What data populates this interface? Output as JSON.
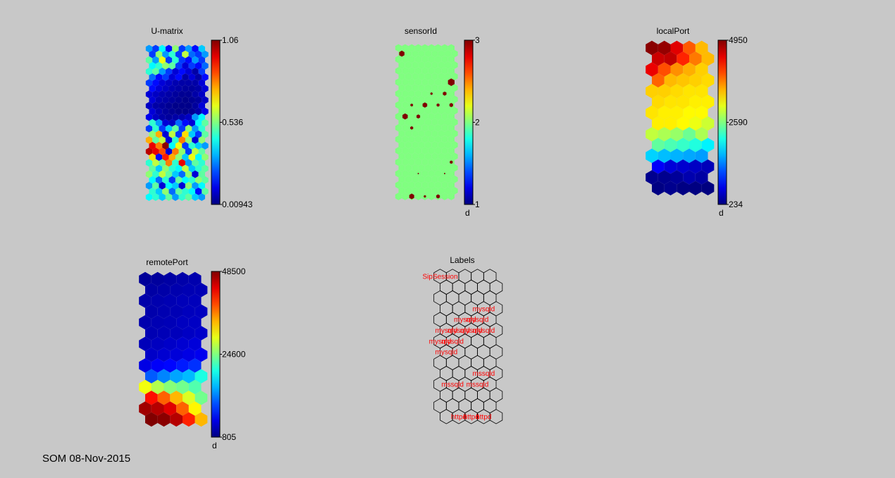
{
  "footer_text": "SOM 08-Nov-2015",
  "chart_data": [
    {
      "type": "heatmap",
      "title": "U-matrix",
      "map_layout": "hexagonal",
      "grid_columns": 9,
      "grid_rows": 27,
      "colormap": "jet",
      "colorbar": {
        "ticks": [
          "1.06",
          "0.536",
          "0.00943"
        ],
        "min": 0.00943,
        "max": 1.06,
        "unit_label": ""
      },
      "values": [
        [
          0.3,
          0.2,
          0.4,
          0.15,
          0.55,
          0.2,
          0.3,
          0.15,
          0.35
        ],
        [
          0.2,
          0.55,
          0.3,
          0.45,
          0.2,
          0.6,
          0.25,
          0.2,
          0.3
        ],
        [
          0.5,
          0.3,
          0.65,
          0.2,
          0.45,
          0.2,
          0.15,
          0.3,
          0.2
        ],
        [
          0.4,
          0.45,
          0.55,
          0.5,
          0.2,
          0.1,
          0.2,
          0.15,
          0.25
        ],
        [
          0.45,
          0.5,
          0.3,
          0.2,
          0.1,
          0.15,
          0.1,
          0.05,
          0.2
        ],
        [
          0.25,
          0.15,
          0.2,
          0.1,
          0.15,
          0.05,
          0.1,
          0.05,
          0.15
        ],
        [
          0.2,
          0.15,
          0.1,
          0.08,
          0.06,
          0.05,
          0.05,
          0.05,
          0.1
        ],
        [
          0.15,
          0.1,
          0.08,
          0.06,
          0.05,
          0.04,
          0.04,
          0.05,
          0.1
        ],
        [
          0.1,
          0.08,
          0.06,
          0.05,
          0.04,
          0.03,
          0.03,
          0.05,
          0.08
        ],
        [
          0.1,
          0.06,
          0.05,
          0.04,
          0.03,
          0.02,
          0.03,
          0.04,
          0.08
        ],
        [
          0.08,
          0.05,
          0.04,
          0.03,
          0.02,
          0.02,
          0.02,
          0.04,
          0.1
        ],
        [
          0.1,
          0.06,
          0.04,
          0.03,
          0.02,
          0.02,
          0.03,
          0.05,
          0.12
        ],
        [
          0.12,
          0.08,
          0.05,
          0.04,
          0.05,
          0.06,
          0.08,
          0.3,
          0.4
        ],
        [
          0.45,
          0.3,
          0.1,
          0.08,
          0.25,
          0.15,
          0.1,
          0.4,
          0.5
        ],
        [
          0.2,
          0.45,
          0.2,
          0.35,
          0.5,
          0.2,
          0.55,
          0.3,
          0.45
        ],
        [
          0.55,
          0.75,
          0.1,
          0.6,
          0.2,
          0.7,
          0.35,
          0.2,
          0.5
        ],
        [
          0.75,
          0.5,
          0.6,
          0.1,
          0.45,
          0.8,
          0.55,
          0.1,
          0.55
        ],
        [
          0.95,
          0.8,
          1.05,
          0.4,
          0.65,
          0.2,
          0.45,
          0.35,
          0.3
        ],
        [
          1.0,
          0.95,
          0.85,
          0.1,
          0.8,
          0.55,
          0.2,
          0.6,
          0.5
        ],
        [
          0.7,
          0.15,
          0.9,
          0.75,
          0.55,
          0.35,
          0.65,
          0.4,
          0.55
        ],
        [
          0.45,
          0.6,
          0.5,
          0.8,
          0.45,
          0.95,
          0.3,
          0.5,
          0.45
        ],
        [
          0.5,
          0.35,
          0.55,
          0.45,
          0.4,
          0.6,
          0.35,
          0.45,
          0.5
        ],
        [
          0.55,
          0.45,
          0.6,
          0.5,
          0.35,
          0.25,
          0.55,
          0.1,
          0.5
        ],
        [
          0.4,
          0.25,
          0.45,
          0.2,
          0.5,
          0.4,
          0.45,
          0.55,
          0.5
        ],
        [
          0.3,
          0.5,
          0.1,
          0.4,
          0.35,
          0.1,
          0.55,
          0.3,
          0.4
        ],
        [
          0.45,
          0.35,
          0.55,
          0.25,
          0.5,
          0.45,
          0.4,
          0.15,
          0.5
        ],
        [
          0.4,
          0.45,
          0.35,
          0.5,
          0.3,
          0.45,
          0.5,
          0.35,
          0.3
        ]
      ]
    },
    {
      "type": "heatmap",
      "title": "sensorId",
      "map_layout": "hexagonal",
      "grid_columns": 9,
      "grid_rows": 27,
      "colormap": "jet",
      "background_level": 2,
      "colorbar": {
        "ticks": [
          "3",
          "2",
          "1"
        ],
        "min": 1,
        "max": 3,
        "unit_label": "d"
      },
      "highlight_value": 3,
      "highlights": [
        {
          "row": 1,
          "col": 0,
          "fraction": 0.8
        },
        {
          "row": 6,
          "col": 8,
          "fraction": 1.0
        },
        {
          "row": 8,
          "col": 5,
          "fraction": 0.35
        },
        {
          "row": 8,
          "col": 7,
          "fraction": 0.55
        },
        {
          "row": 10,
          "col": 2,
          "fraction": 0.4
        },
        {
          "row": 10,
          "col": 4,
          "fraction": 0.7
        },
        {
          "row": 10,
          "col": 6,
          "fraction": 0.45
        },
        {
          "row": 10,
          "col": 8,
          "fraction": 0.55
        },
        {
          "row": 12,
          "col": 1,
          "fraction": 0.8
        },
        {
          "row": 12,
          "col": 3,
          "fraction": 0.55
        },
        {
          "row": 14,
          "col": 2,
          "fraction": 0.45
        },
        {
          "row": 20,
          "col": 8,
          "fraction": 0.45
        },
        {
          "row": 22,
          "col": 3,
          "fraction": 0.2
        },
        {
          "row": 22,
          "col": 7,
          "fraction": 0.2
        },
        {
          "row": 26,
          "col": 2,
          "fraction": 0.75
        },
        {
          "row": 26,
          "col": 4,
          "fraction": 0.35
        },
        {
          "row": 26,
          "col": 6,
          "fraction": 0.55
        }
      ]
    },
    {
      "type": "heatmap",
      "title": "localPort",
      "map_layout": "hexagonal",
      "grid_columns": 5,
      "grid_rows": 14,
      "colormap": "jet",
      "colorbar": {
        "ticks": [
          "4950",
          "2590",
          "234"
        ],
        "min": 234,
        "max": 4950,
        "unit_label": "d"
      },
      "values": [
        [
          4900,
          4850,
          4500,
          3950,
          3500
        ],
        [
          4600,
          4650,
          4200,
          3800,
          3500
        ],
        [
          4450,
          4000,
          3700,
          3550,
          3400
        ],
        [
          3900,
          3500,
          3450,
          3400,
          3350
        ],
        [
          3400,
          3400,
          3350,
          3300,
          3300
        ],
        [
          3350,
          3300,
          3300,
          3250,
          3250
        ],
        [
          3300,
          3250,
          3250,
          3200,
          3200
        ],
        [
          3250,
          3250,
          3200,
          3100,
          2950
        ],
        [
          2900,
          2800,
          2700,
          2500,
          2800
        ],
        [
          2450,
          2350,
          2250,
          2150,
          1950
        ],
        [
          1800,
          1700,
          1650,
          1600,
          1550
        ],
        [
          800,
          650,
          600,
          550,
          500
        ],
        [
          300,
          300,
          350,
          450,
          400
        ],
        [
          250,
          300,
          250,
          240,
          234
        ]
      ]
    },
    {
      "type": "heatmap",
      "title": "remotePort",
      "map_layout": "hexagonal",
      "grid_columns": 5,
      "grid_rows": 14,
      "colormap": "jet",
      "colorbar": {
        "ticks": [
          "48500",
          "24600",
          "805"
        ],
        "min": 805,
        "max": 48500,
        "unit_label": "d"
      },
      "values": [
        [
          2000,
          2200,
          2500,
          2800,
          3000
        ],
        [
          2500,
          2700,
          3000,
          3200,
          3300
        ],
        [
          2800,
          3000,
          3200,
          3500,
          3600
        ],
        [
          2900,
          3100,
          3300,
          3700,
          3800
        ],
        [
          3000,
          3200,
          3400,
          3800,
          4000
        ],
        [
          3200,
          3400,
          3600,
          4000,
          4300
        ],
        [
          3500,
          3800,
          4200,
          4600,
          5000
        ],
        [
          4200,
          4600,
          5000,
          5500,
          6000
        ],
        [
          5500,
          6500,
          7000,
          8000,
          9000
        ],
        [
          11000,
          13000,
          14500,
          15500,
          20000
        ],
        [
          30000,
          27000,
          25000,
          24000,
          22500
        ],
        [
          42000,
          38000,
          34000,
          29000,
          24000
        ],
        [
          47000,
          46000,
          44000,
          38000,
          31000
        ],
        [
          48500,
          48000,
          46000,
          41000,
          34000
        ]
      ]
    },
    {
      "type": "table",
      "title": "Labels",
      "map_layout": "hexagonal",
      "grid_columns": 5,
      "grid_rows": 14,
      "labels": [
        {
          "row": 0,
          "col": 0,
          "text": "SipSession"
        },
        {
          "row": 3,
          "col": 3,
          "text": "mysqld"
        },
        {
          "row": 4,
          "col": 2,
          "text": "mysqld"
        },
        {
          "row": 4,
          "col": 3,
          "text": "mysqld"
        },
        {
          "row": 5,
          "col": 0,
          "text": "mysqld"
        },
        {
          "row": 5,
          "col": 1,
          "text": "mysqld"
        },
        {
          "row": 5,
          "col": 2,
          "text": "mysqld"
        },
        {
          "row": 5,
          "col": 3,
          "text": "mysqld"
        },
        {
          "row": 6,
          "col": 0,
          "text": "mysqld"
        },
        {
          "row": 6,
          "col": 1,
          "text": "mysqld"
        },
        {
          "row": 7,
          "col": 0,
          "text": "mysqld"
        },
        {
          "row": 9,
          "col": 3,
          "text": "mssqld"
        },
        {
          "row": 10,
          "col": 1,
          "text": "mssqld"
        },
        {
          "row": 10,
          "col": 3,
          "text": "mssqld"
        },
        {
          "row": 13,
          "col": 1,
          "text": "httpd"
        },
        {
          "row": 13,
          "col": 2,
          "text": "httpd"
        },
        {
          "row": 13,
          "col": 3,
          "text": "httpd"
        }
      ]
    }
  ]
}
